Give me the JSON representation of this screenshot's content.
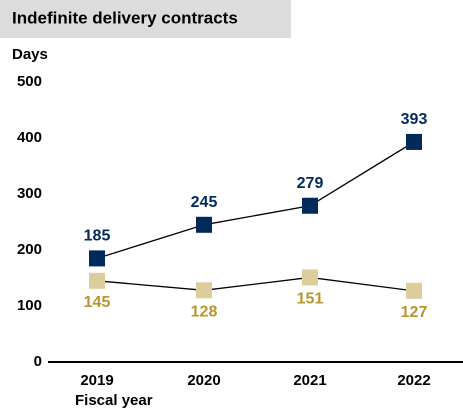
{
  "chart_data": {
    "type": "line",
    "title": "Indefinite delivery contracts",
    "y_label": "Days",
    "x_label": "Fiscal year",
    "categories": [
      "2019",
      "2020",
      "2021",
      "2022"
    ],
    "series": [
      {
        "color": "#002a5c",
        "label_color": "#002a5c",
        "label_position": "above",
        "values": [
          185,
          245,
          279,
          393
        ]
      },
      {
        "color": "#dccd9c",
        "label_color": "#b8952f",
        "label_position": "below",
        "values": [
          145,
          128,
          151,
          127
        ]
      }
    ],
    "ylim": [
      0,
      500
    ],
    "yticks": [
      0,
      100,
      200,
      300,
      400,
      500
    ],
    "grid": false
  }
}
